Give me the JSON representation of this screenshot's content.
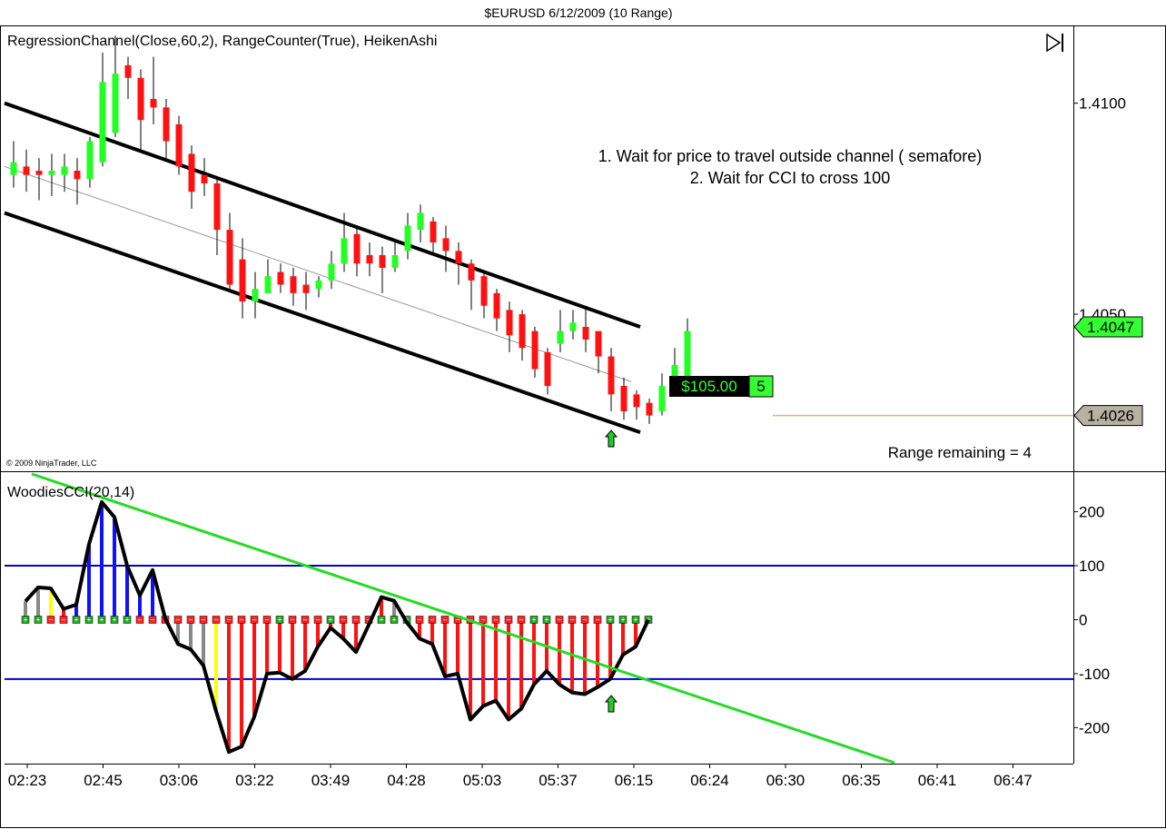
{
  "window_title": "$EURUSD  6/12/2009 (10 Range)",
  "colors": {
    "bull_candle": "#22ff22",
    "bear_candle": "#ff1111",
    "channel_line": "#000000",
    "regression_mid": "#999999",
    "trend_line": "#22dd22",
    "cci_line": "#000000",
    "cci_levels": "#0000cc",
    "hist_up": "#1010ff",
    "hist_down": "#ff1111",
    "hist_neutral": "#888888",
    "hist_flag": "#ffff00",
    "price_marker_current": "#33ff33",
    "price_marker_order": "#b8b0a0",
    "order_line": "#e8b080",
    "arrow": "#22cc22"
  },
  "price_panel": {
    "indicator_label": "RegressionChannel(Close,60,2), RangeCounter(True), HeikenAshi",
    "annotation_line1": "1. Wait for price to travel outside channel ( semafore)",
    "annotation_line2": "2. Wait for CCI to cross 100",
    "range_remaining": "Range remaining = 4",
    "copyright": "© 2009 NinjaTrader, LLC",
    "scroll_icon": "skip-to-end-icon",
    "position_pnl": "$105.00",
    "position_qty": "5",
    "current_price_label": "1.4047",
    "order_price_label": "1.4026"
  },
  "cci_panel": {
    "indicator_label": "WoodiesCCI(20,14)"
  },
  "x_axis": {
    "tick_labels": [
      "02:23",
      "02:45",
      "03:06",
      "03:22",
      "03:49",
      "04:28",
      "05:03",
      "05:37",
      "06:15",
      "06:24",
      "06:30",
      "06:35",
      "06:41",
      "06:47"
    ]
  },
  "chart_data": [
    {
      "type": "candlestick",
      "title": "$EURUSD  6/12/2009 (10 Range)",
      "style": "Heiken Ashi",
      "y_axis_ticks": [
        1.41,
        1.405
      ],
      "y_axis_tick_labels": [
        "1.4100",
        "1.4050"
      ],
      "ylim": [
        1.4013,
        1.4118
      ],
      "current_price": 1.4047,
      "order_price": 1.4026,
      "candles": [
        {
          "open": 1.4083,
          "close": 1.4086,
          "high": 1.4091,
          "low": 1.408
        },
        {
          "open": 1.4085,
          "close": 1.4083,
          "high": 1.4089,
          "low": 1.4079
        },
        {
          "open": 1.4084,
          "close": 1.4083,
          "high": 1.4087,
          "low": 1.4077
        },
        {
          "open": 1.4083,
          "close": 1.4084,
          "high": 1.4088,
          "low": 1.4078
        },
        {
          "open": 1.4083,
          "close": 1.4085,
          "high": 1.4088,
          "low": 1.4079
        },
        {
          "open": 1.4084,
          "close": 1.4082,
          "high": 1.4087,
          "low": 1.4076
        },
        {
          "open": 1.4082,
          "close": 1.4091,
          "high": 1.4092,
          "low": 1.408
        },
        {
          "open": 1.4086,
          "close": 1.4105,
          "high": 1.4112,
          "low": 1.4085
        },
        {
          "open": 1.4093,
          "close": 1.4107,
          "high": 1.4116,
          "low": 1.4092
        },
        {
          "open": 1.4109,
          "close": 1.4106,
          "high": 1.4111,
          "low": 1.4101
        },
        {
          "open": 1.4106,
          "close": 1.4096,
          "high": 1.4108,
          "low": 1.4089
        },
        {
          "open": 1.4101,
          "close": 1.4099,
          "high": 1.4111,
          "low": 1.4095
        },
        {
          "open": 1.4099,
          "close": 1.4091,
          "high": 1.4101,
          "low": 1.4087
        },
        {
          "open": 1.4095,
          "close": 1.4085,
          "high": 1.4097,
          "low": 1.4083
        },
        {
          "open": 1.4088,
          "close": 1.4079,
          "high": 1.409,
          "low": 1.4075
        },
        {
          "open": 1.4083,
          "close": 1.4081,
          "high": 1.4087,
          "low": 1.4078
        },
        {
          "open": 1.4081,
          "close": 1.407,
          "high": 1.4082,
          "low": 1.4064
        },
        {
          "open": 1.407,
          "close": 1.4057,
          "high": 1.4074,
          "low": 1.4056
        },
        {
          "open": 1.4063,
          "close": 1.4053,
          "high": 1.4068,
          "low": 1.4049
        },
        {
          "open": 1.4053,
          "close": 1.4056,
          "high": 1.406,
          "low": 1.4049
        },
        {
          "open": 1.4055,
          "close": 1.4059,
          "high": 1.4063,
          "low": 1.4056
        },
        {
          "open": 1.406,
          "close": 1.4057,
          "high": 1.4062,
          "low": 1.4055
        },
        {
          "open": 1.4059,
          "close": 1.4055,
          "high": 1.4061,
          "low": 1.4052
        },
        {
          "open": 1.4057,
          "close": 1.4055,
          "high": 1.406,
          "low": 1.4051
        },
        {
          "open": 1.4056,
          "close": 1.4058,
          "high": 1.4059,
          "low": 1.4054
        },
        {
          "open": 1.4058,
          "close": 1.4062,
          "high": 1.4065,
          "low": 1.4056
        },
        {
          "open": 1.4062,
          "close": 1.4068,
          "high": 1.4074,
          "low": 1.406
        },
        {
          "open": 1.4069,
          "close": 1.4062,
          "high": 1.4071,
          "low": 1.4059
        },
        {
          "open": 1.4064,
          "close": 1.4062,
          "high": 1.4067,
          "low": 1.4059
        },
        {
          "open": 1.4064,
          "close": 1.4061,
          "high": 1.4066,
          "low": 1.4055
        },
        {
          "open": 1.4061,
          "close": 1.4064,
          "high": 1.4067,
          "low": 1.406
        },
        {
          "open": 1.4065,
          "close": 1.4071,
          "high": 1.4074,
          "low": 1.4063
        },
        {
          "open": 1.407,
          "close": 1.4074,
          "high": 1.4076,
          "low": 1.4067
        },
        {
          "open": 1.4072,
          "close": 1.4067,
          "high": 1.4073,
          "low": 1.4064
        },
        {
          "open": 1.4068,
          "close": 1.4065,
          "high": 1.4071,
          "low": 1.406
        },
        {
          "open": 1.4065,
          "close": 1.4062,
          "high": 1.4067,
          "low": 1.4057
        },
        {
          "open": 1.4062,
          "close": 1.4058,
          "high": 1.4063,
          "low": 1.4051
        },
        {
          "open": 1.4059,
          "close": 1.4052,
          "high": 1.406,
          "low": 1.4049
        },
        {
          "open": 1.4055,
          "close": 1.4049,
          "high": 1.4056,
          "low": 1.4046
        },
        {
          "open": 1.4051,
          "close": 1.4045,
          "high": 1.4053,
          "low": 1.4041
        },
        {
          "open": 1.405,
          "close": 1.4042,
          "high": 1.4051,
          "low": 1.4039
        },
        {
          "open": 1.4046,
          "close": 1.4037,
          "high": 1.4047,
          "low": 1.4035
        },
        {
          "open": 1.4041,
          "close": 1.4033,
          "high": 1.4042,
          "low": 1.4031
        },
        {
          "open": 1.4043,
          "close": 1.4046,
          "high": 1.4051,
          "low": 1.4041
        },
        {
          "open": 1.4046,
          "close": 1.4048,
          "high": 1.4051,
          "low": 1.4044
        },
        {
          "open": 1.4047,
          "close": 1.4044,
          "high": 1.4052,
          "low": 1.4041
        },
        {
          "open": 1.4046,
          "close": 1.404,
          "high": 1.4046,
          "low": 1.4036
        },
        {
          "open": 1.404,
          "close": 1.4031,
          "high": 1.4042,
          "low": 1.4027
        },
        {
          "open": 1.4033,
          "close": 1.4027,
          "high": 1.4035,
          "low": 1.4025
        },
        {
          "open": 1.4031,
          "close": 1.4028,
          "high": 1.4032,
          "low": 1.4025
        },
        {
          "open": 1.4029,
          "close": 1.4026,
          "high": 1.403,
          "low": 1.4024
        },
        {
          "open": 1.4027,
          "close": 1.4033,
          "high": 1.4036,
          "low": 1.4026
        },
        {
          "open": 1.4033,
          "close": 1.4038,
          "high": 1.4042,
          "low": 1.4032
        },
        {
          "open": 1.4035,
          "close": 1.4046,
          "high": 1.4049,
          "low": 1.4035
        }
      ],
      "regression_channel": {
        "upper": [
          1.41,
          1.4047
        ],
        "middle": [
          1.4085,
          1.4034
        ],
        "lower": [
          1.4074,
          1.4022
        ]
      }
    },
    {
      "type": "bar",
      "title": "WoodiesCCI(20,14)",
      "y_axis_ticks": [
        200,
        100,
        0,
        -100,
        -200
      ],
      "ylim": [
        -265,
        270
      ],
      "reference_lines": [
        100,
        -110
      ],
      "cci": [
        34,
        60,
        58,
        20,
        28,
        140,
        218,
        190,
        100,
        45,
        92,
        2,
        -45,
        -55,
        -85,
        -170,
        -245,
        -235,
        -180,
        -100,
        -98,
        -110,
        -95,
        -50,
        -15,
        -35,
        -60,
        -10,
        42,
        35,
        -5,
        -35,
        -45,
        -105,
        -100,
        -185,
        -160,
        -150,
        -185,
        -165,
        -120,
        -95,
        -120,
        -135,
        -138,
        -125,
        -110,
        -65,
        -50,
        0
      ],
      "histogram_colors": [
        "neutral",
        "neutral",
        "flag",
        "down",
        "up",
        "up",
        "up",
        "up",
        "up",
        "up",
        "up",
        "down",
        "neutral",
        "neutral",
        "neutral",
        "flag",
        "down",
        "down",
        "down",
        "down",
        "down",
        "down",
        "down",
        "down",
        "down",
        "down",
        "down",
        "down",
        "down",
        "neutral",
        "down",
        "down",
        "down",
        "down",
        "down",
        "down",
        "down",
        "down",
        "down",
        "down",
        "down",
        "down",
        "down",
        "down",
        "down",
        "down",
        "down",
        "down",
        "down",
        "down"
      ],
      "zero_markers": [
        "+",
        "+",
        "−",
        "−",
        "+",
        "+",
        "+",
        "+",
        "+",
        "−",
        "−",
        "−",
        "−",
        "−",
        "−",
        "−",
        "−",
        "−",
        "−",
        "−",
        "+",
        "−",
        "−",
        "−",
        "+",
        "−",
        "−",
        "−",
        "+",
        "+",
        "+",
        "−",
        "−",
        "−",
        "−",
        "−",
        "−",
        "−",
        "−",
        "−",
        "+",
        "+",
        "−",
        "−",
        "−",
        "−",
        "+",
        "+",
        "+",
        "+"
      ],
      "trend_line": [
        270,
        -265
      ]
    }
  ]
}
